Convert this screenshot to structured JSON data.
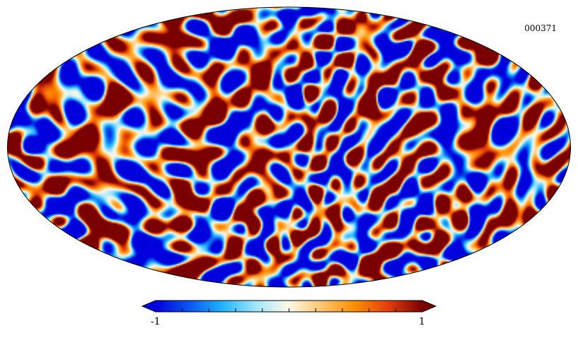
{
  "map": {
    "projection": "mollweide",
    "id_label": "000371",
    "field_seed": 371,
    "colormap": [
      "#0000dd",
      "#0a55f0",
      "#1fb4ff",
      "#9fe6ff",
      "#fff9e6",
      "#ffc46a",
      "#ff8c00",
      "#e23c0c",
      "#7a0000"
    ]
  },
  "colorbar": {
    "min_label": "-1",
    "max_label": "1",
    "min": -1,
    "max": 1,
    "ticks": 9,
    "extend": "both"
  }
}
